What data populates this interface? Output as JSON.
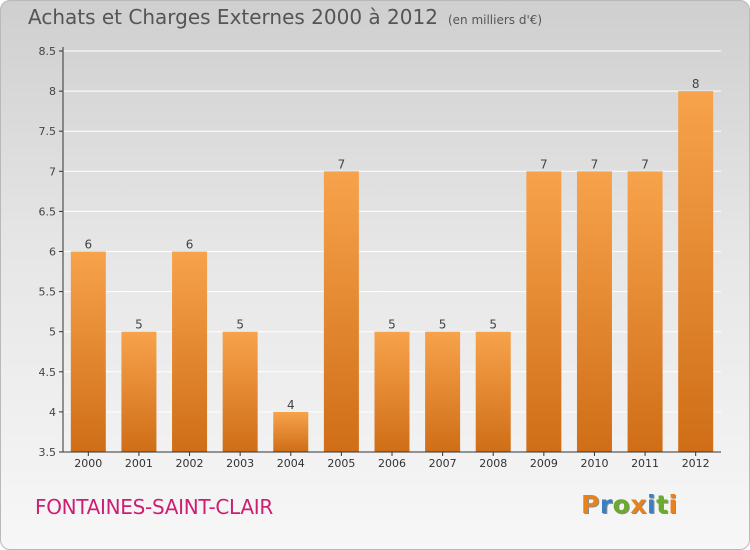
{
  "header": {
    "title": "Achats et Charges Externes 2000 à 2012",
    "unit": "(en milliers d'€)"
  },
  "footer": {
    "commune": "FONTAINES-SAINT-CLAIR",
    "logo": "Proxiti"
  },
  "colors": {
    "bar_light": "#f7a34c",
    "bar_dark": "#cf6e17",
    "axis": "#333333",
    "grid": "#ffffff",
    "commune_text": "#cc1f73",
    "logo_letters": [
      "#e8831c",
      "#3a7fc1",
      "#6aaa2e",
      "#e8831c",
      "#3a7fc1",
      "#6aaa2e",
      "#e8831c"
    ]
  },
  "chart_data": {
    "type": "bar",
    "categories": [
      "2000",
      "2001",
      "2002",
      "2003",
      "2004",
      "2005",
      "2006",
      "2007",
      "2008",
      "2009",
      "2010",
      "2011",
      "2012"
    ],
    "values": [
      6,
      5,
      6,
      5,
      4,
      7,
      5,
      5,
      5,
      7,
      7,
      7,
      8
    ],
    "data_labels": [
      "6",
      "5",
      "6",
      "5",
      "4",
      "7",
      "5",
      "5",
      "5",
      "7",
      "7",
      "7",
      "8"
    ],
    "ylim": [
      3.5,
      8.5
    ],
    "yticks": [
      3.5,
      4,
      4.5,
      5,
      5.5,
      6,
      6.5,
      7,
      7.5,
      8,
      8.5
    ],
    "ytick_labels": [
      "3.5",
      "4",
      "4.5",
      "5",
      "5.5",
      "6",
      "6.5",
      "7",
      "7.5",
      "8",
      "8.5"
    ],
    "grid": true,
    "legend": "none",
    "xlabel": "",
    "ylabel": ""
  }
}
